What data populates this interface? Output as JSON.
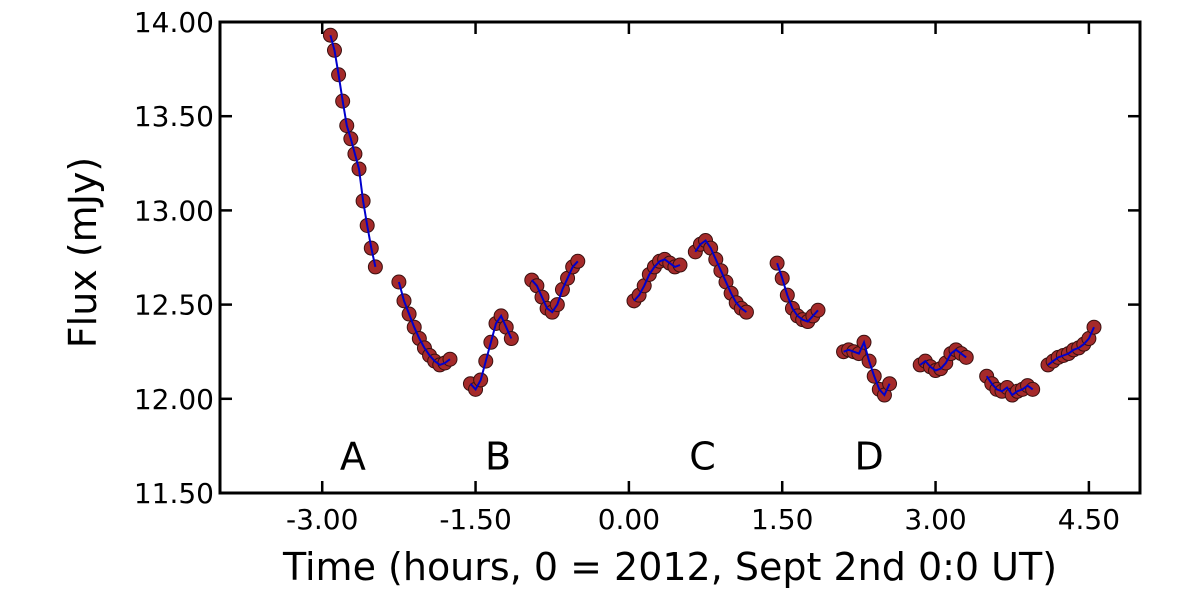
{
  "chart_data": {
    "type": "scatter",
    "xlabel": "Time (hours, 0 = 2012, Sept 2nd 0:0 UT)",
    "ylabel": "Flux (mJy)",
    "xlim": [
      -4.0,
      5.0
    ],
    "ylim": [
      11.5,
      14.0
    ],
    "xticks": [
      -3.0,
      -1.5,
      0.0,
      1.5,
      3.0,
      4.5
    ],
    "xtick_labels": [
      "-3.00",
      "-1.50",
      "0.00",
      "1.50",
      "3.00",
      "4.50"
    ],
    "yticks": [
      11.5,
      12.0,
      12.5,
      13.0,
      13.5,
      14.0
    ],
    "ytick_labels": [
      "11.50",
      "12.00",
      "12.50",
      "13.00",
      "13.50",
      "14.00"
    ],
    "grid": false,
    "marker_color": "#a52a2a",
    "errorbar_color": "#c03030",
    "fit_color": "#0000cc",
    "annotations": [
      {
        "text": "A",
        "x": -2.7,
        "y": 11.7
      },
      {
        "text": "B",
        "x": -1.28,
        "y": 11.7
      },
      {
        "text": "C",
        "x": 0.72,
        "y": 11.7
      },
      {
        "text": "D",
        "x": 2.35,
        "y": 11.7
      }
    ],
    "segments": [
      {
        "x": [
          -2.92,
          -2.88,
          -2.84,
          -2.8,
          -2.76,
          -2.72,
          -2.68,
          -2.64,
          -2.6,
          -2.56,
          -2.52,
          -2.48
        ],
        "y": [
          13.93,
          13.85,
          13.72,
          13.58,
          13.45,
          13.38,
          13.3,
          13.22,
          13.05,
          12.92,
          12.8,
          12.7
        ]
      },
      {
        "x": [
          -2.25,
          -2.2,
          -2.15,
          -2.1,
          -2.05,
          -2.0,
          -1.95,
          -1.9,
          -1.85,
          -1.8,
          -1.75
        ],
        "y": [
          12.62,
          12.52,
          12.45,
          12.38,
          12.32,
          12.27,
          12.23,
          12.2,
          12.18,
          12.19,
          12.21
        ]
      },
      {
        "x": [
          -1.55,
          -1.5,
          -1.45,
          -1.4,
          -1.35,
          -1.3,
          -1.25,
          -1.2,
          -1.15
        ],
        "y": [
          12.08,
          12.05,
          12.1,
          12.2,
          12.3,
          12.4,
          12.44,
          12.38,
          12.32
        ]
      },
      {
        "x": [
          -0.95,
          -0.9,
          -0.85,
          -0.8,
          -0.75,
          -0.7,
          -0.65,
          -0.6,
          -0.55,
          -0.5
        ],
        "y": [
          12.63,
          12.6,
          12.54,
          12.48,
          12.46,
          12.5,
          12.58,
          12.64,
          12.7,
          12.73
        ]
      },
      {
        "x": [
          0.05,
          0.1,
          0.15,
          0.2,
          0.25,
          0.3,
          0.35,
          0.4,
          0.45,
          0.5
        ],
        "y": [
          12.52,
          12.55,
          12.6,
          12.66,
          12.7,
          12.73,
          12.74,
          12.72,
          12.7,
          12.71
        ]
      },
      {
        "x": [
          0.65,
          0.7,
          0.75,
          0.8,
          0.85,
          0.9,
          0.95,
          1.0,
          1.05,
          1.1,
          1.15
        ],
        "y": [
          12.78,
          12.82,
          12.84,
          12.8,
          12.74,
          12.68,
          12.62,
          12.56,
          12.51,
          12.48,
          12.46
        ]
      },
      {
        "x": [
          1.45,
          1.5,
          1.55,
          1.6,
          1.65,
          1.7,
          1.75,
          1.8,
          1.85
        ],
        "y": [
          12.72,
          12.64,
          12.55,
          12.48,
          12.44,
          12.42,
          12.41,
          12.44,
          12.47
        ]
      },
      {
        "x": [
          2.1,
          2.15,
          2.2,
          2.25,
          2.3,
          2.35,
          2.4,
          2.45,
          2.5,
          2.55
        ],
        "y": [
          12.25,
          12.26,
          12.25,
          12.24,
          12.3,
          12.2,
          12.12,
          12.05,
          12.02,
          12.08
        ]
      },
      {
        "x": [
          2.85,
          2.9,
          2.95,
          3.0,
          3.05,
          3.1,
          3.15,
          3.2,
          3.25,
          3.3
        ],
        "y": [
          12.18,
          12.2,
          12.17,
          12.15,
          12.16,
          12.19,
          12.24,
          12.26,
          12.24,
          12.22
        ]
      },
      {
        "x": [
          3.5,
          3.55,
          3.6,
          3.65,
          3.7,
          3.75,
          3.8,
          3.85,
          3.9,
          3.95
        ],
        "y": [
          12.12,
          12.08,
          12.05,
          12.04,
          12.06,
          12.02,
          12.04,
          12.05,
          12.07,
          12.05
        ]
      },
      {
        "x": [
          4.1,
          4.15,
          4.2,
          4.25,
          4.3,
          4.35,
          4.4,
          4.45,
          4.5,
          4.55
        ],
        "y": [
          12.18,
          12.2,
          12.22,
          12.23,
          12.24,
          12.26,
          12.27,
          12.29,
          12.32,
          12.38
        ]
      }
    ]
  }
}
